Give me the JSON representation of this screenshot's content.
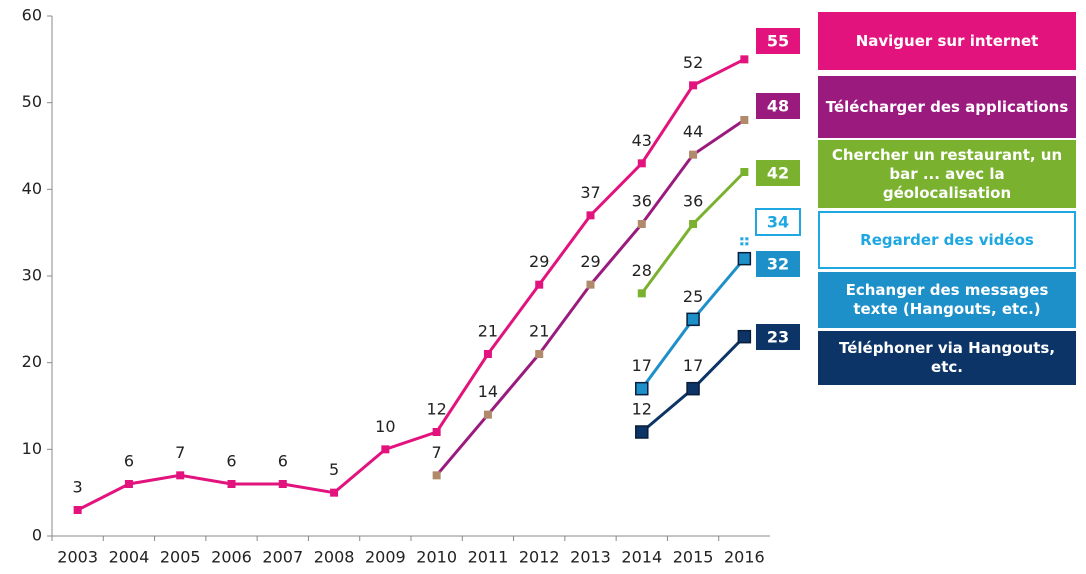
{
  "chart_data": {
    "type": "line",
    "categories": [
      "2003",
      "2004",
      "2005",
      "2006",
      "2007",
      "2008",
      "2009",
      "2010",
      "2011",
      "2012",
      "2013",
      "2014",
      "2015",
      "2016"
    ],
    "ylim": [
      0,
      60
    ],
    "yticks": [
      0,
      10,
      20,
      30,
      40,
      50,
      60
    ],
    "series": [
      {
        "name": "Naviguer sur internet",
        "color": "#e2137d",
        "values": [
          3,
          6,
          7,
          6,
          6,
          5,
          10,
          12,
          21,
          29,
          37,
          43,
          52,
          55
        ]
      },
      {
        "name": "Télécharger des applications",
        "color": "#9b1a7e",
        "values": [
          null,
          null,
          null,
          null,
          null,
          null,
          null,
          7,
          14,
          21,
          29,
          36,
          44,
          48
        ]
      },
      {
        "name": "Chercher un restaurant, un bar ... avec la géolocalisation",
        "color": "#7ab12f",
        "values": [
          null,
          null,
          null,
          null,
          null,
          null,
          null,
          null,
          null,
          null,
          null,
          28,
          36,
          42
        ]
      },
      {
        "name": "Regarder des vidéos",
        "color": "#1ea7e1",
        "values": [
          null,
          null,
          null,
          null,
          null,
          null,
          null,
          null,
          null,
          null,
          null,
          null,
          null,
          34
        ]
      },
      {
        "name": "Echanger des messages texte (Hangouts, etc.)",
        "color": "#1d8fc9",
        "values": [
          null,
          null,
          null,
          null,
          null,
          null,
          null,
          null,
          null,
          null,
          null,
          17,
          25,
          32
        ]
      },
      {
        "name": "Téléphoner via Hangouts, etc.",
        "color": "#0c3466",
        "values": [
          null,
          null,
          null,
          null,
          null,
          null,
          null,
          null,
          null,
          null,
          null,
          12,
          17,
          23
        ]
      }
    ]
  }
}
